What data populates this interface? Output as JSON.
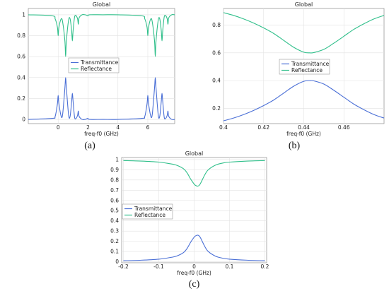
{
  "chart_data": [
    {
      "id": "a",
      "panel_label": "(a)",
      "type": "line",
      "title": "Global",
      "xlabel": "freq-f0 (GHz)",
      "ylabel": "",
      "xlim": [
        -2,
        7.8
      ],
      "ylim": [
        -0.04,
        1.06
      ],
      "xticks": [
        0,
        2,
        4,
        6
      ],
      "yticks": [
        0,
        0.2,
        0.4,
        0.6,
        0.8,
        1
      ],
      "ytick_labels": [
        "0",
        "0.2",
        "0.4",
        "0.6",
        "0.8",
        "1"
      ],
      "grid": true,
      "legend": {
        "position": "center",
        "entries": [
          "Transmittance",
          "Reflectance"
        ]
      },
      "series": [
        {
          "name": "Transmittance",
          "color": "#4a6fd6",
          "x": [
            -2,
            -0.4,
            -0.2,
            -0.05,
            0,
            0.05,
            0.2,
            0.3,
            0.45,
            0.5,
            0.55,
            0.7,
            0.8,
            0.9,
            0.95,
            1.0,
            1.1,
            1.2,
            1.3,
            1.35,
            1.4,
            1.6,
            1.8,
            1.9,
            2.0,
            2.1,
            3,
            4,
            5.6,
            5.8,
            5.95,
            6.0,
            6.05,
            6.2,
            6.3,
            6.45,
            6.5,
            6.55,
            6.7,
            6.8,
            6.9,
            6.95,
            7.0,
            7.1,
            7.2,
            7.3,
            7.35,
            7.4,
            7.6,
            7.8
          ],
          "y": [
            0.0,
            0.01,
            0.03,
            0.15,
            0.23,
            0.15,
            0.03,
            0.05,
            0.3,
            0.4,
            0.3,
            0.04,
            0.03,
            0.17,
            0.25,
            0.17,
            0.02,
            0.01,
            0.04,
            0.08,
            0.03,
            0.0,
            0.0,
            0.005,
            0.01,
            0.0,
            0.0,
            0.0,
            0.01,
            0.03,
            0.15,
            0.23,
            0.15,
            0.03,
            0.05,
            0.3,
            0.4,
            0.3,
            0.04,
            0.03,
            0.17,
            0.25,
            0.17,
            0.02,
            0.01,
            0.04,
            0.08,
            0.03,
            0.0,
            0.0
          ]
        },
        {
          "name": "Reflectance",
          "color": "#2fbf8a",
          "x": [
            -2,
            -0.4,
            -0.2,
            -0.05,
            0,
            0.05,
            0.2,
            0.3,
            0.45,
            0.5,
            0.55,
            0.7,
            0.8,
            0.9,
            0.95,
            1.0,
            1.1,
            1.2,
            1.3,
            1.35,
            1.4,
            1.6,
            1.8,
            1.9,
            2.0,
            2.1,
            3,
            4,
            5.6,
            5.8,
            5.95,
            6.0,
            6.05,
            6.2,
            6.3,
            6.45,
            6.5,
            6.55,
            6.7,
            6.8,
            6.9,
            6.95,
            7.0,
            7.1,
            7.2,
            7.3,
            7.35,
            7.4,
            7.6,
            7.8
          ],
          "y": [
            1.0,
            0.99,
            0.96,
            0.88,
            0.8,
            0.88,
            0.96,
            0.93,
            0.75,
            0.6,
            0.75,
            0.95,
            0.96,
            0.85,
            0.75,
            0.85,
            0.98,
            0.99,
            0.96,
            0.91,
            0.97,
            1.0,
            1.0,
            0.995,
            0.99,
            1.0,
            1.0,
            1.0,
            0.99,
            0.96,
            0.88,
            0.8,
            0.88,
            0.96,
            0.93,
            0.75,
            0.6,
            0.75,
            0.95,
            0.96,
            0.85,
            0.75,
            0.85,
            0.98,
            0.99,
            0.96,
            0.91,
            0.97,
            1.0,
            1.0
          ]
        }
      ]
    },
    {
      "id": "b",
      "panel_label": "(b)",
      "type": "line",
      "title": "Global",
      "xlabel": "freq-f0 (GHz)",
      "ylabel": "",
      "xlim": [
        0.4,
        0.48
      ],
      "ylim": [
        0.09,
        0.92
      ],
      "xticks": [
        0.4,
        0.42,
        0.44,
        0.46
      ],
      "yticks": [
        0.2,
        0.4,
        0.6,
        0.8
      ],
      "ytick_labels": [
        "0.2",
        "0.4",
        "0.6",
        "0.8"
      ],
      "grid": true,
      "legend": {
        "position": "center",
        "entries": [
          "Transmittance",
          "Reflectance"
        ]
      },
      "series": [
        {
          "name": "Transmittance",
          "color": "#4a6fd6",
          "x": [
            0.4,
            0.405,
            0.41,
            0.415,
            0.42,
            0.425,
            0.43,
            0.435,
            0.44,
            0.443,
            0.445,
            0.45,
            0.455,
            0.46,
            0.465,
            0.47,
            0.475,
            0.48
          ],
          "y": [
            0.11,
            0.13,
            0.155,
            0.185,
            0.22,
            0.26,
            0.31,
            0.36,
            0.395,
            0.4,
            0.398,
            0.375,
            0.33,
            0.28,
            0.23,
            0.19,
            0.155,
            0.13
          ]
        },
        {
          "name": "Reflectance",
          "color": "#2fbf8a",
          "x": [
            0.4,
            0.405,
            0.41,
            0.415,
            0.42,
            0.425,
            0.43,
            0.435,
            0.44,
            0.443,
            0.445,
            0.45,
            0.455,
            0.46,
            0.465,
            0.47,
            0.475,
            0.48
          ],
          "y": [
            0.89,
            0.87,
            0.845,
            0.815,
            0.78,
            0.74,
            0.69,
            0.64,
            0.605,
            0.6,
            0.602,
            0.625,
            0.67,
            0.72,
            0.77,
            0.81,
            0.845,
            0.87
          ]
        }
      ]
    },
    {
      "id": "c",
      "panel_label": "(c)",
      "type": "line",
      "title": "Global",
      "xlabel": "freq-f0 (GHz)",
      "ylabel": "",
      "xlim": [
        -0.205,
        0.205
      ],
      "ylim": [
        -0.01,
        1.02
      ],
      "xticks": [
        -0.2,
        -0.1,
        0,
        0.1,
        0.2
      ],
      "yticks": [
        0,
        0.1,
        0.2,
        0.3,
        0.4,
        0.5,
        0.6,
        0.7,
        0.8,
        0.9,
        1
      ],
      "ytick_labels": [
        "0",
        "0.1",
        "0.2",
        "0.3",
        "0.4",
        "0.5",
        "0.6",
        "0.7",
        "0.8",
        "0.9",
        "1"
      ],
      "grid": true,
      "legend": {
        "position": "center-left",
        "entries": [
          "Transmittance",
          "Reflectance"
        ]
      },
      "series": [
        {
          "name": "Transmittance",
          "color": "#4a6fd6",
          "x": [
            -0.2,
            -0.15,
            -0.1,
            -0.07,
            -0.05,
            -0.03,
            -0.02,
            -0.01,
            0.0,
            0.005,
            0.01,
            0.015,
            0.02,
            0.03,
            0.04,
            0.06,
            0.08,
            0.1,
            0.15,
            0.2
          ],
          "y": [
            0.01,
            0.015,
            0.025,
            0.04,
            0.055,
            0.09,
            0.13,
            0.19,
            0.24,
            0.255,
            0.26,
            0.25,
            0.22,
            0.15,
            0.1,
            0.055,
            0.035,
            0.025,
            0.015,
            0.01
          ]
        },
        {
          "name": "Reflectance",
          "color": "#2fbf8a",
          "x": [
            -0.2,
            -0.15,
            -0.1,
            -0.07,
            -0.05,
            -0.03,
            -0.02,
            -0.01,
            0.0,
            0.005,
            0.01,
            0.015,
            0.02,
            0.03,
            0.04,
            0.06,
            0.08,
            0.1,
            0.15,
            0.2
          ],
          "y": [
            0.99,
            0.985,
            0.975,
            0.96,
            0.945,
            0.91,
            0.87,
            0.81,
            0.76,
            0.745,
            0.74,
            0.75,
            0.78,
            0.85,
            0.9,
            0.945,
            0.965,
            0.975,
            0.985,
            0.99
          ]
        }
      ]
    }
  ]
}
